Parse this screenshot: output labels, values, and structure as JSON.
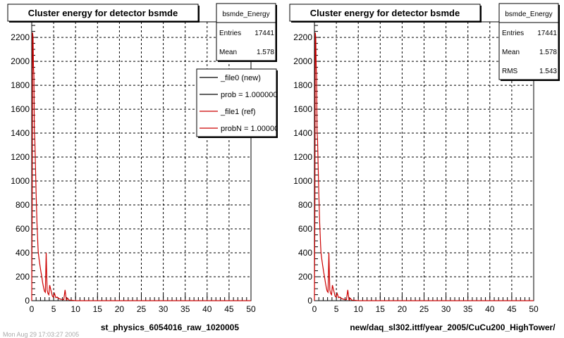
{
  "chart_data": [
    {
      "type": "line",
      "title": "Cluster energy for detector bsmde",
      "xlabel": "st_physics_6054016_raw_1020005",
      "ylabel": "",
      "xlim": [
        0,
        50
      ],
      "ylim": [
        0,
        2330
      ],
      "x_ticks": [
        "0",
        "5",
        "10",
        "15",
        "20",
        "25",
        "30",
        "35",
        "40",
        "45",
        "50"
      ],
      "y_ticks": [
        "0",
        "200",
        "400",
        "600",
        "800",
        "1000",
        "1200",
        "1400",
        "1600",
        "1800",
        "2000",
        "2200"
      ],
      "grid": true,
      "stats": {
        "name": "bsmde_Energy",
        "rows": [
          {
            "label": "Entries",
            "value": "17441"
          },
          {
            "label": "Mean",
            "value": "1.578"
          }
        ]
      },
      "legend": {
        "placement": "top-right",
        "entries": [
          {
            "label": "_file0 (new)",
            "color": "#000000"
          },
          {
            "label": "prob = 1.000000",
            "color": "#000000"
          },
          {
            "label": "_file1 (ref)",
            "color": "#cc0000"
          },
          {
            "label": "probN = 1.000000",
            "color": "#cc0000"
          }
        ]
      },
      "series": [
        {
          "color": "#cc0000",
          "x": [
            0,
            0.1,
            0.2,
            0.3,
            0.4,
            0.5,
            0.6,
            0.7,
            0.8,
            0.9,
            1.0,
            1.1,
            1.2,
            1.3,
            1.4,
            1.5,
            1.7,
            1.9,
            2.1,
            2.3,
            2.5,
            2.7,
            2.9,
            3.1,
            3.3,
            3.5,
            3.7,
            3.9,
            4.1,
            4.3,
            4.5,
            4.7,
            4.9,
            5.2,
            5.5,
            5.8,
            6.1,
            6.4,
            6.7,
            7.0,
            7.3,
            7.6,
            7.9,
            8.2,
            8.5,
            8.8,
            9.2,
            9.6,
            10.0,
            11,
            12,
            13,
            14,
            15,
            20,
            30,
            40,
            50
          ],
          "y": [
            0,
            700,
            2240,
            2200,
            1950,
            1880,
            1420,
            1350,
            1200,
            1050,
            900,
            780,
            640,
            560,
            470,
            400,
            340,
            290,
            240,
            200,
            150,
            110,
            80,
            70,
            400,
            90,
            60,
            50,
            130,
            100,
            70,
            40,
            30,
            60,
            25,
            30,
            20,
            15,
            12,
            10,
            8,
            90,
            6,
            20,
            5,
            4,
            3,
            2,
            0,
            0,
            0,
            0,
            0,
            0,
            0,
            0,
            0,
            0
          ]
        }
      ]
    },
    {
      "type": "line",
      "title": "Cluster energy for detector bsmde",
      "xlabel": "new/daq_sl302.ittf/year_2005/CuCu200_HighTower/",
      "ylabel": "",
      "xlim": [
        0,
        50
      ],
      "ylim": [
        0,
        2330
      ],
      "x_ticks": [
        "0",
        "5",
        "10",
        "15",
        "20",
        "25",
        "30",
        "35",
        "40",
        "45",
        "50"
      ],
      "y_ticks": [
        "0",
        "200",
        "400",
        "600",
        "800",
        "1000",
        "1200",
        "1400",
        "1600",
        "1800",
        "2000",
        "2200"
      ],
      "grid": true,
      "stats": {
        "name": "bsmde_Energy",
        "rows": [
          {
            "label": "Entries",
            "value": "17441"
          },
          {
            "label": "Mean",
            "value": "1.578"
          },
          {
            "label": "RMS",
            "value": "1.543"
          }
        ]
      },
      "series": [
        {
          "color": "#cc0000",
          "x": [
            0,
            0.1,
            0.2,
            0.3,
            0.4,
            0.5,
            0.6,
            0.7,
            0.8,
            0.9,
            1.0,
            1.1,
            1.2,
            1.3,
            1.4,
            1.5,
            1.7,
            1.9,
            2.1,
            2.3,
            2.5,
            2.7,
            2.9,
            3.1,
            3.3,
            3.5,
            3.7,
            3.9,
            4.1,
            4.3,
            4.5,
            4.7,
            4.9,
            5.2,
            5.5,
            5.8,
            6.1,
            6.4,
            6.7,
            7.0,
            7.3,
            7.6,
            7.9,
            8.2,
            8.5,
            8.8,
            9.2,
            9.6,
            10.0,
            11,
            12,
            13,
            14,
            15,
            20,
            30,
            40,
            50
          ],
          "y": [
            0,
            700,
            2240,
            2200,
            1950,
            1880,
            1420,
            1350,
            1200,
            1050,
            900,
            780,
            640,
            560,
            470,
            400,
            340,
            290,
            240,
            200,
            150,
            110,
            80,
            70,
            400,
            90,
            60,
            50,
            130,
            100,
            70,
            40,
            30,
            60,
            25,
            30,
            20,
            15,
            12,
            10,
            8,
            90,
            6,
            20,
            5,
            4,
            3,
            2,
            0,
            0,
            0,
            0,
            0,
            0,
            0,
            0,
            0,
            0
          ]
        }
      ]
    }
  ],
  "footer_timestamp": "Mon Aug 29 17:03:27 2005"
}
